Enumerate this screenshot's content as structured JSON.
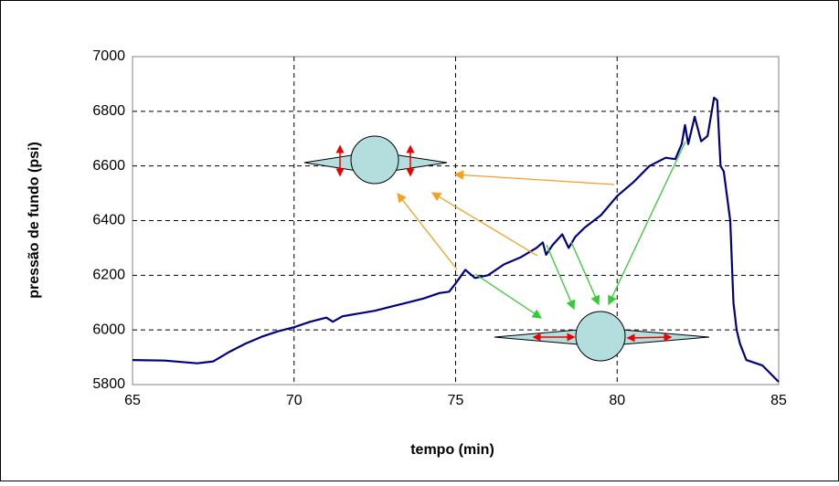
{
  "chart_data": {
    "type": "line",
    "xlabel": "tempo (min)",
    "ylabel": "pressão de fundo (psi)",
    "x": [
      65,
      66,
      67,
      67.5,
      68,
      68.5,
      69,
      69.5,
      70,
      70.5,
      71,
      71.2,
      71.5,
      72,
      72.5,
      73,
      73.5,
      74,
      74.5,
      74.8,
      75,
      75.3,
      75.6,
      76,
      76.5,
      77,
      77.5,
      77.7,
      77.8,
      78,
      78.3,
      78.5,
      78.7,
      79,
      79.5,
      80,
      80.5,
      81,
      81.5,
      81.8,
      82,
      82.1,
      82.2,
      82.4,
      82.6,
      82.8,
      83,
      83.1,
      83.2,
      83.3,
      83.5,
      83.6,
      83.7,
      83.8,
      84,
      84.5,
      85
    ],
    "series": [
      {
        "color": "#000080",
        "values": [
          5890,
          5888,
          5878,
          5885,
          5920,
          5950,
          5975,
          5995,
          6010,
          6030,
          6045,
          6030,
          6050,
          6060,
          6070,
          6085,
          6100,
          6115,
          6135,
          6140,
          6170,
          6220,
          6190,
          6200,
          6240,
          6265,
          6300,
          6320,
          6275,
          6310,
          6350,
          6300,
          6340,
          6375,
          6420,
          6490,
          6540,
          6600,
          6630,
          6625,
          6680,
          6750,
          6680,
          6780,
          6690,
          6710,
          6850,
          6840,
          6600,
          6580,
          6400,
          6100,
          6000,
          5950,
          5890,
          5870,
          5810
        ]
      }
    ],
    "xlim": [
      65,
      85
    ],
    "xticks": [
      65,
      70,
      75,
      80,
      85
    ],
    "ylim": [
      5800,
      7000
    ],
    "yticks": [
      5800,
      6000,
      6200,
      6400,
      6600,
      6800,
      7000
    ],
    "grid": true
  }
}
